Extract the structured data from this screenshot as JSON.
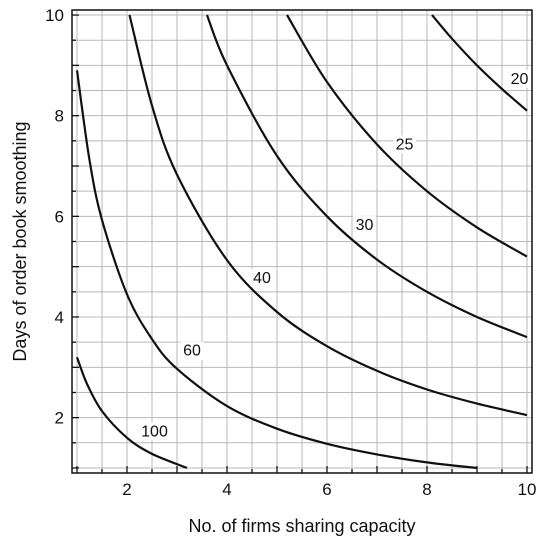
{
  "chart_data": {
    "type": "line",
    "title": "",
    "xlabel": "No. of firms sharing capacity",
    "ylabel": "Days of order book smoothing",
    "xlim": [
      0.9,
      10.1
    ],
    "ylim": [
      0.9,
      10.1
    ],
    "grid": true,
    "legend": "none",
    "x_ticks": [
      2,
      4,
      6,
      8,
      10
    ],
    "y_ticks": [
      2,
      4,
      6,
      8,
      10
    ],
    "series": [
      {
        "label": "100",
        "values": [
          [
            1.0,
            3.2
          ],
          [
            1.2,
            2.67
          ],
          [
            1.5,
            2.13
          ],
          [
            2.0,
            1.6
          ],
          [
            2.5,
            1.28
          ],
          [
            3.2,
            1.0
          ]
        ]
      },
      {
        "label": "60",
        "values": [
          [
            1.0,
            8.9
          ],
          [
            1.25,
            7.12
          ],
          [
            1.5,
            5.93
          ],
          [
            2.0,
            4.45
          ],
          [
            2.5,
            3.56
          ],
          [
            3.0,
            2.97
          ],
          [
            4.0,
            2.23
          ],
          [
            5.0,
            1.78
          ],
          [
            6.0,
            1.48
          ],
          [
            7.0,
            1.27
          ],
          [
            8.0,
            1.11
          ],
          [
            9.0,
            1.0
          ]
        ]
      },
      {
        "label": "40",
        "values": [
          [
            2.05,
            10.0
          ],
          [
            2.5,
            8.2
          ],
          [
            3.0,
            6.83
          ],
          [
            4.0,
            5.13
          ],
          [
            5.0,
            4.1
          ],
          [
            6.0,
            3.42
          ],
          [
            7.0,
            2.93
          ],
          [
            8.0,
            2.56
          ],
          [
            9.0,
            2.28
          ],
          [
            10.0,
            2.05
          ]
        ]
      },
      {
        "label": "30",
        "values": [
          [
            3.6,
            10.0
          ],
          [
            4.0,
            9.0
          ],
          [
            5.0,
            7.2
          ],
          [
            6.0,
            6.0
          ],
          [
            7.0,
            5.14
          ],
          [
            8.0,
            4.5
          ],
          [
            9.0,
            4.0
          ],
          [
            10.0,
            3.6
          ]
        ]
      },
      {
        "label": "25",
        "values": [
          [
            5.2,
            10.0
          ],
          [
            6.0,
            8.67
          ],
          [
            7.0,
            7.43
          ],
          [
            8.0,
            6.5
          ],
          [
            9.0,
            5.78
          ],
          [
            10.0,
            5.2
          ]
        ]
      },
      {
        "label": "20",
        "values": [
          [
            8.1,
            10.0
          ],
          [
            8.5,
            9.53
          ],
          [
            9.0,
            9.0
          ],
          [
            9.5,
            8.53
          ],
          [
            10.0,
            8.1
          ]
        ]
      }
    ],
    "contour_labels": [
      {
        "text": "100",
        "x": 2.55,
        "y": 1.65
      },
      {
        "text": "60",
        "x": 3.3,
        "y": 3.25
      },
      {
        "text": "40",
        "x": 4.7,
        "y": 4.7
      },
      {
        "text": "30",
        "x": 6.75,
        "y": 5.75
      },
      {
        "text": "25",
        "x": 7.55,
        "y": 7.35
      },
      {
        "text": "20",
        "x": 9.85,
        "y": 8.65
      }
    ]
  }
}
